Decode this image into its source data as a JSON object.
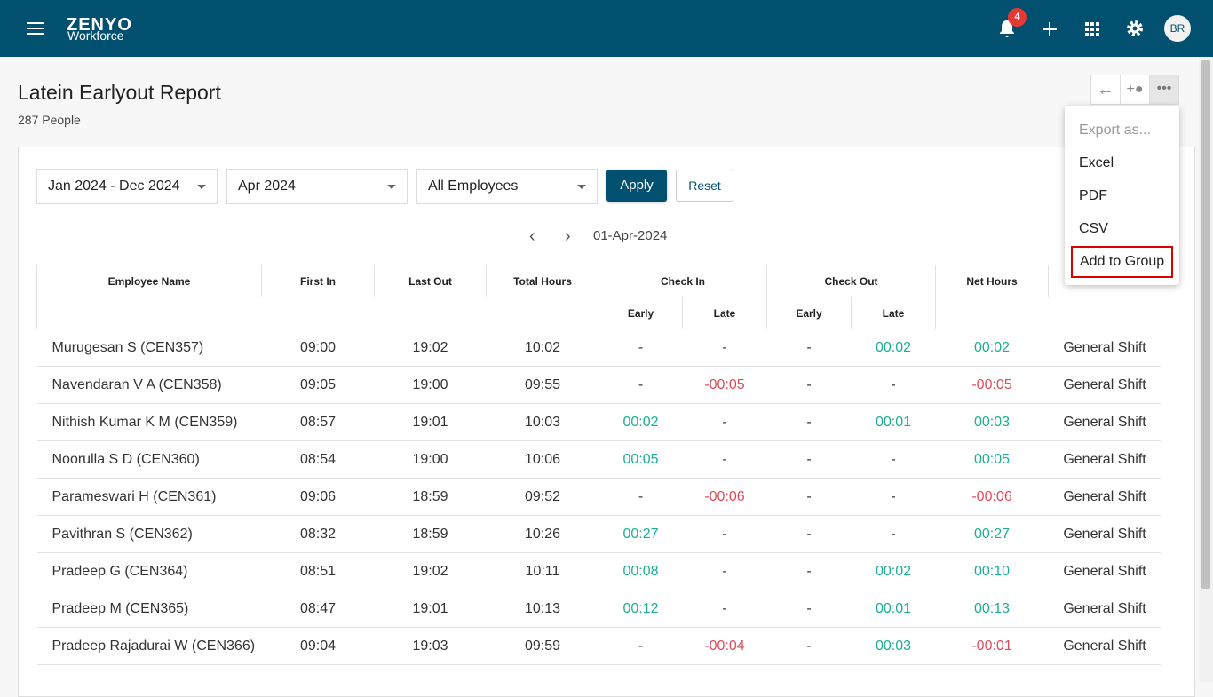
{
  "header": {
    "logo": "ZENYO",
    "logo_sub": "Workforce",
    "notifications": "4",
    "avatar": "BR"
  },
  "page": {
    "title": "Latein Earlyout Report",
    "subtitle": "287 People"
  },
  "filters": {
    "period": "Jan 2024 - Dec 2024",
    "month": "Apr 2024",
    "employees": "All Employees",
    "apply": "Apply",
    "reset": "Reset"
  },
  "date": "01-Apr-2024",
  "table": {
    "columns": [
      "Employee Name",
      "First In",
      "Last Out",
      "Total Hours",
      "Check In",
      "Check Out",
      "Net Hours"
    ],
    "subcolumns": [
      "Early",
      "Late",
      "Early",
      "Late"
    ],
    "rows": [
      [
        "Murugesan S (CEN357)",
        "09:00",
        "19:02",
        "10:02",
        "-",
        "-",
        "-",
        "00:02",
        "00:02",
        "General Shift"
      ],
      [
        "Navendaran V A (CEN358)",
        "09:05",
        "19:00",
        "09:55",
        "-",
        "-00:05",
        "-",
        "-",
        "-00:05",
        "General Shift"
      ],
      [
        "Nithish Kumar K M (CEN359)",
        "08:57",
        "19:01",
        "10:03",
        "00:02",
        "-",
        "-",
        "00:01",
        "00:03",
        "General Shift"
      ],
      [
        "Noorulla S D (CEN360)",
        "08:54",
        "19:00",
        "10:06",
        "00:05",
        "-",
        "-",
        "-",
        "00:05",
        "General Shift"
      ],
      [
        "Parameswari H (CEN361)",
        "09:06",
        "18:59",
        "09:52",
        "-",
        "-00:06",
        "-",
        "-",
        "-00:06",
        "General Shift"
      ],
      [
        "Pavithran S (CEN362)",
        "08:32",
        "18:59",
        "10:26",
        "00:27",
        "-",
        "-",
        "-",
        "00:27",
        "General Shift"
      ],
      [
        "Pradeep G (CEN364)",
        "08:51",
        "19:02",
        "10:11",
        "00:08",
        "-",
        "-",
        "00:02",
        "00:10",
        "General Shift"
      ],
      [
        "Pradeep M (CEN365)",
        "08:47",
        "19:01",
        "10:13",
        "00:12",
        "-",
        "-",
        "00:01",
        "00:13",
        "General Shift"
      ],
      [
        "Pradeep Rajadurai W (CEN366)",
        "09:04",
        "19:03",
        "09:59",
        "-",
        "-00:04",
        "-",
        "00:03",
        "-00:01",
        "General Shift"
      ]
    ]
  },
  "menu": {
    "heading": "Export as...",
    "items": [
      "Excel",
      "PDF",
      "CSV",
      "Add to Group"
    ]
  }
}
